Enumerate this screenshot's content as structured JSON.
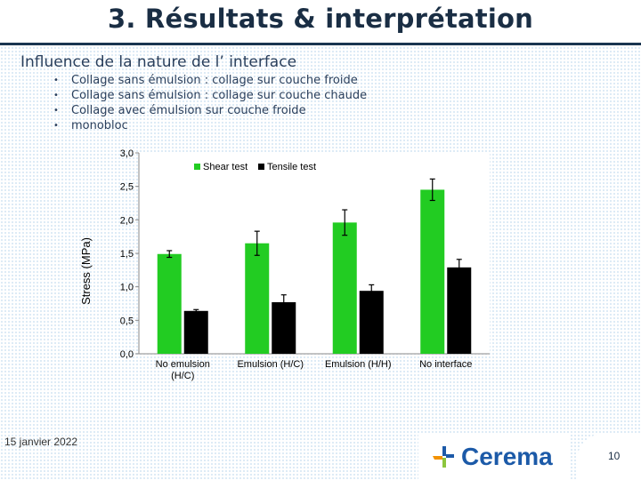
{
  "slide": {
    "title": "3. Résultats & interprétation",
    "subtitle": "Influence de la nature de l’ interface",
    "bullets": [
      "Collage sans émulsion : collage sur couche froide",
      "Collage sans émulsion : collage sur couche chaude",
      "Collage avec émulsion sur couche froide",
      "monobloc"
    ],
    "bullet_symbol": "•",
    "date": "15 janvier 2022",
    "logo_text": "Cerema",
    "page_number": "10"
  },
  "colors": {
    "shear": "#22cc22",
    "tensile": "#000000",
    "title_rule": "#1a3550",
    "logo_blue": "#1c5aa8",
    "logo_orange": "#f39200",
    "logo_green": "#8cc63e"
  },
  "chart_data": {
    "type": "bar",
    "categories": [
      "No emulsion\n(H/C)",
      "Emulsion (H/C)",
      "Emulsion (H/H)",
      "No interface"
    ],
    "series": [
      {
        "name": "Shear test",
        "values": [
          1.49,
          1.65,
          1.96,
          2.45
        ],
        "errors": [
          0.05,
          0.18,
          0.19,
          0.16
        ]
      },
      {
        "name": "Tensile test",
        "values": [
          0.64,
          0.77,
          0.94,
          1.29
        ],
        "errors": [
          0.02,
          0.11,
          0.09,
          0.12
        ]
      }
    ],
    "ylabel": "Stress (MPa)",
    "xlabel": "",
    "ylim": [
      0,
      3
    ],
    "yticks": [
      "0,0",
      "0,5",
      "1,0",
      "1,5",
      "2,0",
      "2,5",
      "3,0"
    ],
    "grid": false,
    "legend_position": "top-center"
  }
}
